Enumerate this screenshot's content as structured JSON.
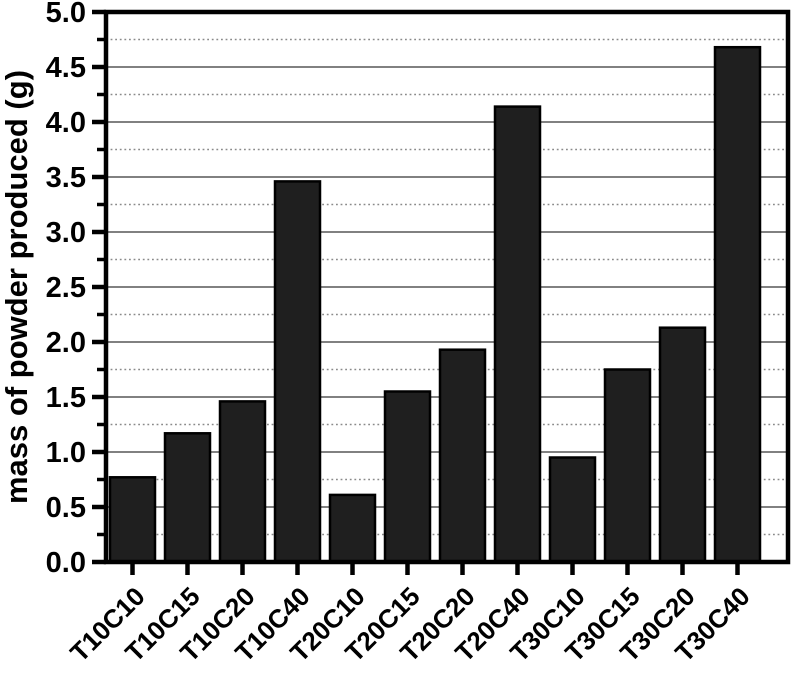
{
  "figure": {
    "background_color": "#ffffff"
  },
  "chart_data": {
    "type": "bar",
    "title": "",
    "categories": [
      "T10C10",
      "T10C15",
      "T10C20",
      "T10C40",
      "T20C10",
      "T20C15",
      "T20C20",
      "T20C40",
      "T30C10",
      "T30C15",
      "T30C20",
      "T30C40"
    ],
    "values": [
      0.77,
      1.17,
      1.46,
      3.46,
      0.61,
      1.55,
      1.93,
      4.14,
      0.95,
      1.75,
      2.13,
      4.68
    ],
    "xlabel": "",
    "ylabel": "mass of powder produced (g)",
    "ylim": [
      0,
      5
    ],
    "ytick_step": 0.5,
    "ytick_labels": [
      "0.0",
      "0.5",
      "1.0",
      "1.5",
      "2.0",
      "2.5",
      "3.0",
      "3.5",
      "4.0",
      "4.5",
      "5.0"
    ],
    "minor_tick_step": 0.25,
    "grid": {
      "major_style": "solid",
      "minor_style": "dotted",
      "major_color": "#6f6f6f",
      "minor_color": "#8a8a8a"
    },
    "legend_position": "none",
    "bar_fill_color": "#1f1f1f",
    "bar_edge_color": "#000000",
    "frame_color": "#000000",
    "x_label_rotation_deg": 45
  }
}
